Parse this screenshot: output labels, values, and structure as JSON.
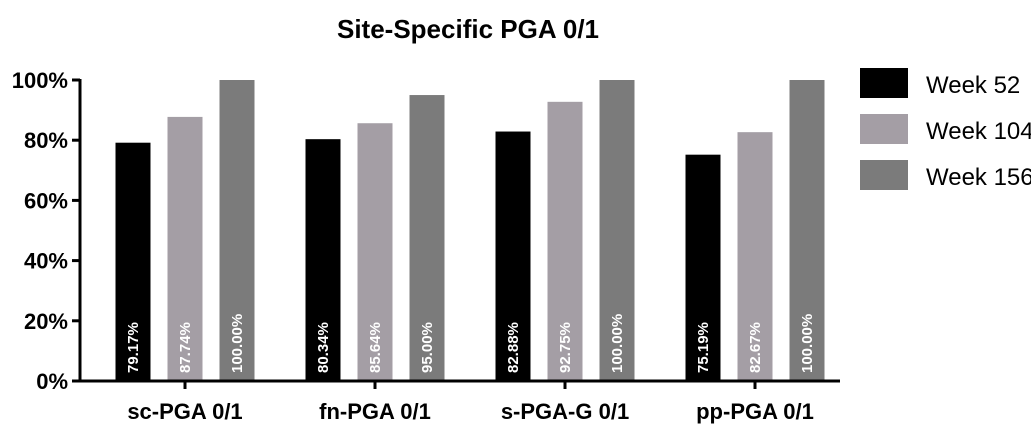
{
  "chart_data": {
    "type": "bar",
    "title": "Site-Specific PGA 0/1",
    "xlabel": "",
    "ylabel": "",
    "ylim": [
      0,
      100
    ],
    "yticks": [
      0,
      20,
      40,
      60,
      80,
      100
    ],
    "ytick_labels": [
      "0%",
      "20%",
      "40%",
      "60%",
      "80%",
      "100%"
    ],
    "categories": [
      "sc-PGA 0/1",
      "fn-PGA 0/1",
      "s-PGA-G 0/1",
      "pp-PGA 0/1"
    ],
    "series": [
      {
        "name": "Week 52",
        "color": "#000000",
        "values": [
          79.17,
          80.34,
          82.88,
          75.19
        ],
        "labels": [
          "79.17%",
          "80.34%",
          "82.88%",
          "75.19%"
        ]
      },
      {
        "name": "Week 104",
        "color": "#a49ea5",
        "values": [
          87.74,
          85.64,
          92.75,
          82.67
        ],
        "labels": [
          "87.74%",
          "85.64%",
          "92.75%",
          "82.67%"
        ]
      },
      {
        "name": "Week 156",
        "color": "#7b7b7b",
        "values": [
          100.0,
          95.0,
          100.0,
          100.0
        ],
        "labels": [
          "100.00%",
          "95.00%",
          "100.00%",
          "100.00%"
        ]
      }
    ],
    "legend_position": "top-right",
    "grid": false
  }
}
